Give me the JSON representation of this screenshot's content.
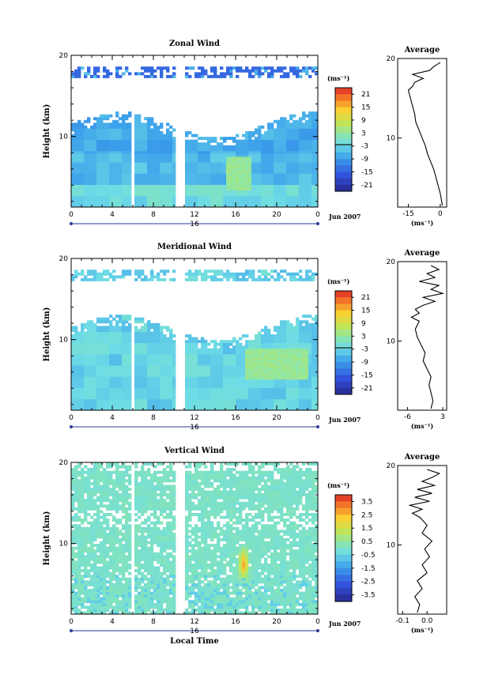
{
  "chart_data": [
    {
      "type": "heatmap",
      "title": "Zonal Wind",
      "ylabel": "Height (km)",
      "xlim": [
        0,
        24
      ],
      "ylim": [
        1.3,
        20
      ],
      "xticks": [
        "0",
        "4",
        "8",
        "12",
        "16",
        "20",
        "0"
      ],
      "yticks": [
        "10",
        "20"
      ],
      "date_label": "16",
      "month_label": "Jun 2007",
      "colorbar": {
        "unit": "(ms⁻¹)",
        "min": -24,
        "max": 24,
        "ticks": [
          "21",
          "15",
          "9",
          "3",
          "-3",
          "-9",
          "-15",
          "-21"
        ]
      },
      "profile": {
        "title": "Average",
        "xlabel": "(ms⁻¹)",
        "xlim": [
          -20,
          3
        ],
        "xticks": [
          "-15",
          "0"
        ],
        "h": [
          1.5,
          3,
          4,
          5,
          6,
          7,
          8,
          9,
          10,
          11,
          12,
          13,
          14,
          15,
          16,
          16.5,
          17,
          17.5,
          18,
          18.5,
          19,
          19.5
        ],
        "v": [
          1,
          0,
          -1,
          -2,
          -3,
          -4.5,
          -6,
          -7,
          -8.5,
          -10,
          -11.5,
          -12,
          -13,
          -14,
          -15,
          -13,
          -12,
          -8,
          -13,
          -5,
          -3,
          0
        ]
      }
    },
    {
      "type": "heatmap",
      "title": "Meridional Wind",
      "ylabel": "Height (km)",
      "xlim": [
        0,
        24
      ],
      "ylim": [
        1.3,
        20
      ],
      "xticks": [
        "0",
        "4",
        "8",
        "12",
        "16",
        "20",
        "0"
      ],
      "yticks": [
        "10",
        "20"
      ],
      "date_label": "16",
      "month_label": "Jun 2007",
      "colorbar": {
        "unit": "(ms⁻¹)",
        "min": -24,
        "max": 24,
        "ticks": [
          "21",
          "15",
          "9",
          "3",
          "-3",
          "-9",
          "-15",
          "-21"
        ]
      },
      "profile": {
        "title": "Average",
        "xlabel": "(ms⁻¹)",
        "xlim": [
          -8.5,
          4
        ],
        "xticks": [
          "-6",
          "3"
        ],
        "h": [
          1.5,
          2.5,
          3.5,
          4.5,
          5.5,
          6.5,
          7.5,
          8.5,
          9.5,
          10.5,
          11.5,
          12.5,
          13,
          13.5,
          14,
          14.5,
          15,
          15.5,
          16,
          16.5,
          17,
          17.5,
          18,
          18.5,
          19,
          19.5
        ],
        "v": [
          0,
          0.5,
          0,
          -0.5,
          0,
          -1,
          -2,
          -1.5,
          -2.5,
          -3.5,
          -4,
          -3,
          -5,
          -3,
          -4,
          -2,
          1,
          -2,
          3,
          0,
          2,
          -3,
          1,
          -1,
          2,
          0
        ]
      }
    },
    {
      "type": "heatmap",
      "title": "Vertical Wind",
      "xlabel": "Local Time",
      "ylabel": "Height (km)",
      "xlim": [
        0,
        24
      ],
      "ylim": [
        1.3,
        20
      ],
      "xticks": [
        "0",
        "4",
        "8",
        "12",
        "16",
        "20",
        "0"
      ],
      "yticks": [
        "10",
        "20"
      ],
      "date_label": "16",
      "month_label": "Jun 2007",
      "colorbar": {
        "unit": "(ms⁻¹)",
        "min": -4,
        "max": 4,
        "ticks": [
          "3.5",
          "2.5",
          "1.5",
          "0.5",
          "-0.5",
          "-1.5",
          "-2.5",
          "-3.5"
        ]
      },
      "profile": {
        "title": "Average",
        "xlabel": "(ms⁻¹)",
        "xlim": [
          -0.12,
          0.08
        ],
        "xticks": [
          "-0.1",
          "0.0"
        ],
        "h": [
          1.5,
          2.5,
          3.5,
          4.5,
          5.5,
          6.5,
          7.5,
          8.5,
          9.5,
          10.5,
          11.5,
          12.5,
          13.5,
          14,
          14.5,
          15,
          15.5,
          16,
          16.5,
          17,
          17.5,
          18,
          18.5,
          19,
          19.5
        ],
        "v": [
          -0.04,
          -0.03,
          -0.05,
          -0.02,
          -0.04,
          0.0,
          -0.02,
          0.01,
          -0.01,
          0.02,
          -0.02,
          0.0,
          -0.03,
          -0.06,
          -0.02,
          -0.07,
          0.01,
          -0.05,
          0.02,
          -0.04,
          0.03,
          -0.02,
          0.02,
          0.05,
          0.0
        ]
      }
    }
  ]
}
